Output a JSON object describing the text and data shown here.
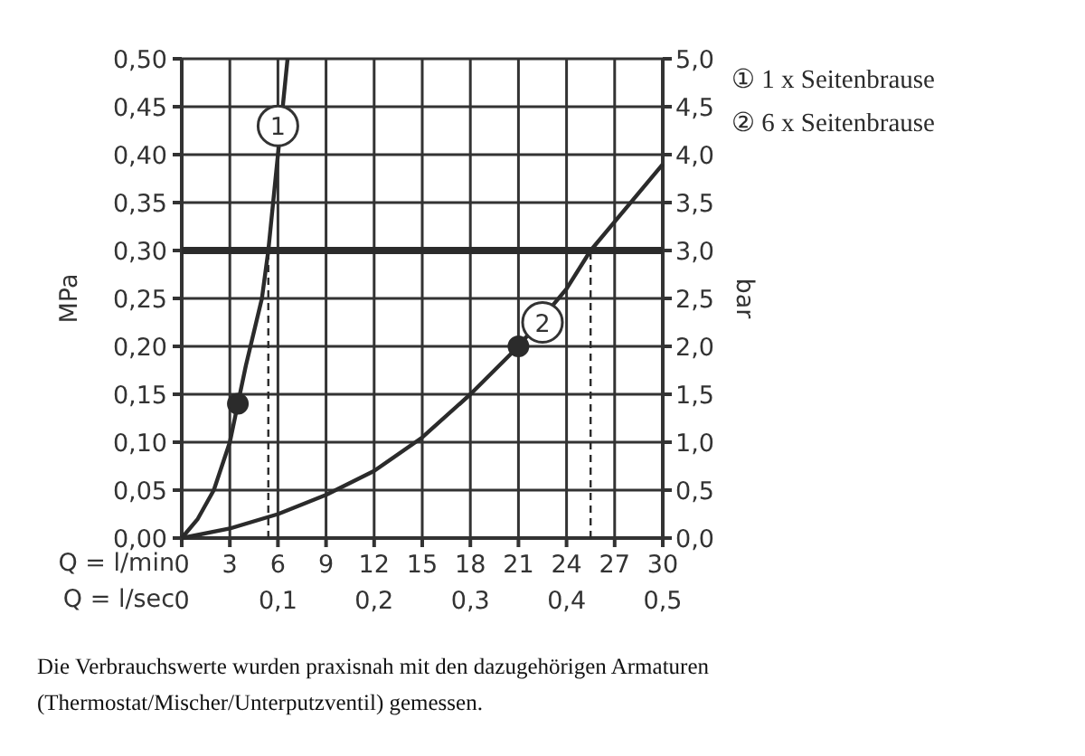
{
  "chart_data": {
    "type": "line",
    "xlabel": "Q = l/min",
    "x2label": "Q = l/sec",
    "ylabel": "MPa",
    "y2label": "bar",
    "xlim": [
      0,
      30
    ],
    "xticks": [
      0,
      3,
      6,
      9,
      12,
      15,
      18,
      21,
      24,
      27,
      30
    ],
    "x2lim": [
      0,
      0.5
    ],
    "x2ticks": [
      {
        "value": 0,
        "label": "0"
      },
      {
        "value": 0.1,
        "label": "0,1"
      },
      {
        "value": 0.2,
        "label": "0,2"
      },
      {
        "value": 0.3,
        "label": "0,3"
      },
      {
        "value": 0.4,
        "label": "0,4"
      },
      {
        "value": 0.5,
        "label": "0,5"
      }
    ],
    "ylim": [
      0,
      0.5
    ],
    "yticks": [
      {
        "value": 0,
        "label": "0,00"
      },
      {
        "value": 0.05,
        "label": "0,05"
      },
      {
        "value": 0.1,
        "label": "0,10"
      },
      {
        "value": 0.15,
        "label": "0,15"
      },
      {
        "value": 0.2,
        "label": "0,20"
      },
      {
        "value": 0.25,
        "label": "0,25"
      },
      {
        "value": 0.3,
        "label": "0,30"
      },
      {
        "value": 0.35,
        "label": "0,35"
      },
      {
        "value": 0.4,
        "label": "0,40"
      },
      {
        "value": 0.45,
        "label": "0,45"
      },
      {
        "value": 0.5,
        "label": "0,50"
      }
    ],
    "y2lim": [
      0,
      5
    ],
    "y2ticks": [
      {
        "value": 0,
        "label": "0,0"
      },
      {
        "value": 0.5,
        "label": "0,5"
      },
      {
        "value": 1,
        "label": "1,0"
      },
      {
        "value": 1.5,
        "label": "1,5"
      },
      {
        "value": 2,
        "label": "2,0"
      },
      {
        "value": 2.5,
        "label": "2,5"
      },
      {
        "value": 3,
        "label": "3,0"
      },
      {
        "value": 3.5,
        "label": "3,5"
      },
      {
        "value": 4,
        "label": "4,0"
      },
      {
        "value": 4.5,
        "label": "4,5"
      },
      {
        "value": 5,
        "label": "5,0"
      }
    ],
    "grid": true,
    "line_style": "solid",
    "series": [
      {
        "name": "① 1 x Seitenbrause",
        "color": "#2b2b2b",
        "x": [
          0,
          1,
          2,
          3,
          3.5,
          4,
          5,
          5.4,
          6,
          6.6
        ],
        "values": [
          0,
          0.02,
          0.05,
          0.1,
          0.14,
          0.18,
          0.25,
          0.3,
          0.4,
          0.5
        ]
      },
      {
        "name": "② 6 x Seitenbrause",
        "color": "#2b2b2b",
        "x": [
          0,
          3,
          6,
          9,
          12,
          15,
          18,
          21,
          24,
          25.5,
          30
        ],
        "values": [
          0,
          0.01,
          0.025,
          0.045,
          0.07,
          0.105,
          0.15,
          0.2,
          0.26,
          0.3,
          0.39
        ]
      },
      {
        "type": "scatter",
        "marker": "circle",
        "color": "#2b2b2b",
        "x": [
          3.5,
          21
        ],
        "values": [
          0.14,
          0.2
        ]
      }
    ],
    "ref_lines": [
      {
        "axis": "y",
        "value": 0.3,
        "color": "#2b2b2b"
      },
      {
        "axis": "x",
        "value": 5.4,
        "line_style": "dashed",
        "color": "#2b2b2b"
      },
      {
        "axis": "x",
        "value": 25.5,
        "line_style": "dashed",
        "color": "#2b2b2b"
      }
    ],
    "annotations": [
      {
        "text": "1",
        "x": 6,
        "y": 0.43
      },
      {
        "text": "2",
        "x": 22.5,
        "y": 0.225
      },
      "Die Verbrauchswerte wurden praxisnah mit den dazugehörigen Armaturen (Thermostat/Mischer/Unterputzventil) gemessen."
    ]
  }
}
